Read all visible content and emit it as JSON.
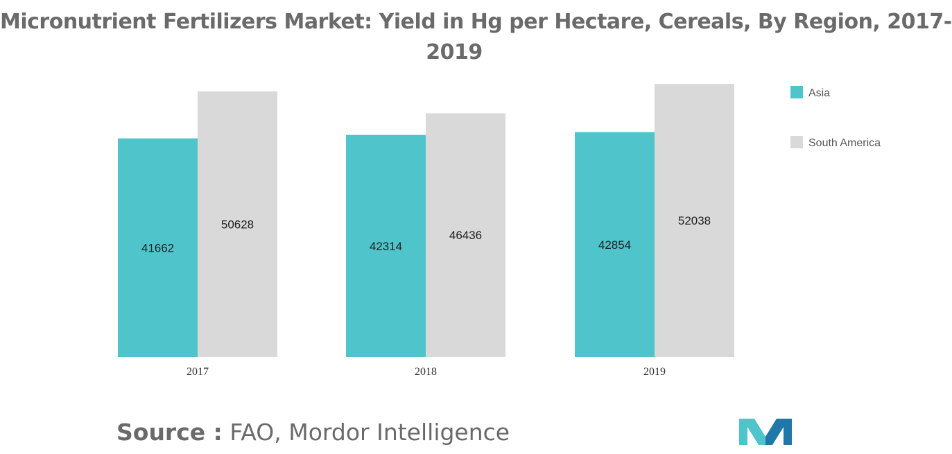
{
  "title_line1": "Micronutrient Fertilizers Market: Yield in Hg per Hectare, Cereals, By Region, 2017-",
  "title_line2": "2019",
  "source": {
    "label": "Source :",
    "text": "FAO, Mordor Intelligence"
  },
  "colors": {
    "Asia": "#4fc4cb",
    "South America": "#d9d9d9",
    "logo_teal": "#4fc4cb",
    "logo_blue": "#1f78a8"
  },
  "chart_data": {
    "type": "bar",
    "categories": [
      "2017",
      "2018",
      "2019"
    ],
    "series": [
      {
        "name": "Asia",
        "values": [
          41662,
          42314,
          42854
        ]
      },
      {
        "name": "South America",
        "values": [
          50628,
          46436,
          52038
        ]
      }
    ],
    "title": "Micronutrient Fertilizers Market: Yield in Hg per Hectare, Cereals, By Region, 2017-2019",
    "xlabel": "",
    "ylabel": "",
    "ylim": [
      0,
      53500
    ],
    "grid": false,
    "legend": "right"
  }
}
